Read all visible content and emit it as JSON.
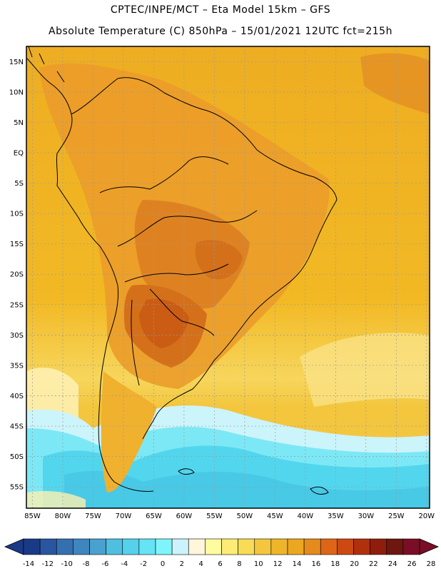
{
  "header": {
    "line1": "CPTEC/INPE/MCT –   Eta Model 15km – GFS",
    "line2": "Absolute Temperature (C) 850hPa – 15/01/2021 12UTC fct=215h"
  },
  "map": {
    "lat_labels": [
      "15N",
      "10N",
      "5N",
      "EQ",
      "5S",
      "10S",
      "15S",
      "20S",
      "25S",
      "30S",
      "35S",
      "40S",
      "45S",
      "50S",
      "55S"
    ],
    "lon_labels": [
      "85W",
      "80W",
      "75W",
      "70W",
      "65W",
      "60W",
      "55W",
      "50W",
      "45W",
      "40W",
      "35W",
      "30W",
      "25W",
      "20W"
    ],
    "colors": {
      "ocean_warm": "#f2b01e",
      "ocean_mid": "#f7d25a",
      "land_warm": "#eb9c2a",
      "land_hot": "#d9741c",
      "land_hottest": "#c95a14",
      "cold_pale": "#ccf4fb",
      "cold_cyan": "#52d6ee",
      "cold_light": "#7de8f5",
      "grid": "#9a9a9a",
      "coast": "#000000"
    }
  },
  "colorbar": {
    "ticks": [
      "-14",
      "-12",
      "-10",
      "-8",
      "-6",
      "-4",
      "-2",
      "0",
      "2",
      "4",
      "6",
      "8",
      "10",
      "12",
      "14",
      "16",
      "18",
      "20",
      "22",
      "24",
      "26",
      "28"
    ],
    "colors": [
      "#1a3a87",
      "#2a55a0",
      "#3470b0",
      "#3f85bf",
      "#49a1cf",
      "#4fbfe0",
      "#55d1ec",
      "#64e4f4",
      "#7ef5fb",
      "#ccf3fb",
      "#fff6dc",
      "#fffba0",
      "#fdeb75",
      "#f8dc55",
      "#f3c63d",
      "#eeb52a",
      "#eda620",
      "#e58a1d",
      "#de6517",
      "#cc4a12",
      "#b0300e",
      "#8f1d0d",
      "#6e1610",
      "#7a0e26"
    ]
  }
}
